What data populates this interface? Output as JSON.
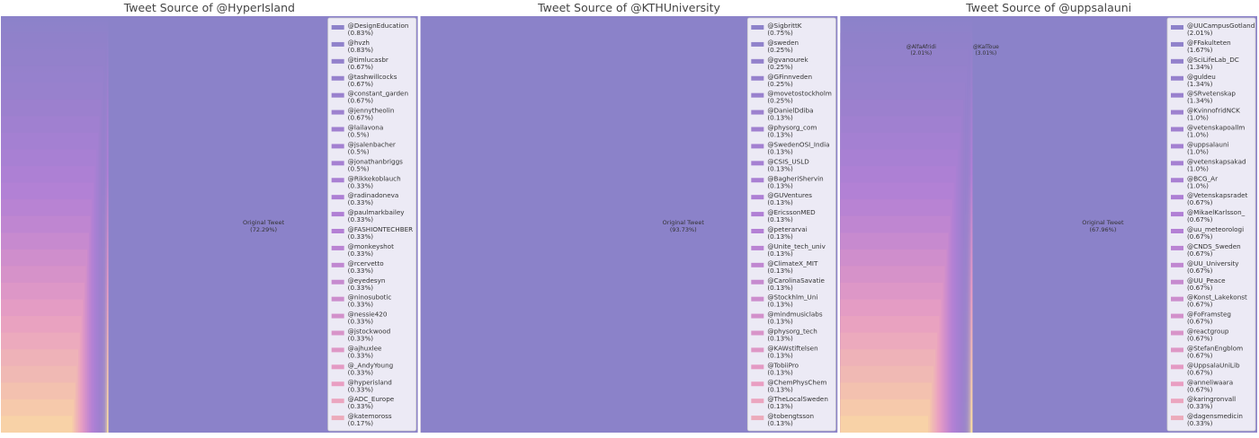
{
  "chart_data": [
    {
      "type": "treemap",
      "title": "Tweet Source of @HyperIsland",
      "main_label": "Original Tweet",
      "main_pct": "(72.29%)",
      "main_value": 72.29,
      "legend": [
        {
          "name": "@DesignEducation",
          "pct": "(0.83%)",
          "value": 0.83
        },
        {
          "name": "@hvzh",
          "pct": "(0.83%)",
          "value": 0.83
        },
        {
          "name": "@timlucasbr",
          "pct": "(0.67%)",
          "value": 0.67
        },
        {
          "name": "@tashwillcocks",
          "pct": "(0.67%)",
          "value": 0.67
        },
        {
          "name": "@constant_garden",
          "pct": "(0.67%)",
          "value": 0.67
        },
        {
          "name": "@jennytheolin",
          "pct": "(0.67%)",
          "value": 0.67
        },
        {
          "name": "@lailavona",
          "pct": "(0.5%)",
          "value": 0.5
        },
        {
          "name": "@jsalenbacher",
          "pct": "(0.5%)",
          "value": 0.5
        },
        {
          "name": "@jonathanbriggs",
          "pct": "(0.5%)",
          "value": 0.5
        },
        {
          "name": "@Rikkekoblauch",
          "pct": "(0.33%)",
          "value": 0.33
        },
        {
          "name": "@radinadoneva",
          "pct": "(0.33%)",
          "value": 0.33
        },
        {
          "name": "@paulmarkbailey",
          "pct": "(0.33%)",
          "value": 0.33
        },
        {
          "name": "@FASHIONTECHBER",
          "pct": "(0.33%)",
          "value": 0.33
        },
        {
          "name": "@monkeyshot",
          "pct": "(0.33%)",
          "value": 0.33
        },
        {
          "name": "@rcervetto",
          "pct": "(0.33%)",
          "value": 0.33
        },
        {
          "name": "@eyedesyn",
          "pct": "(0.33%)",
          "value": 0.33
        },
        {
          "name": "@ninosubotic",
          "pct": "(0.33%)",
          "value": 0.33
        },
        {
          "name": "@nessie420",
          "pct": "(0.33%)",
          "value": 0.33
        },
        {
          "name": "@jstockwood",
          "pct": "(0.33%)",
          "value": 0.33
        },
        {
          "name": "@ajhuxlee",
          "pct": "(0.33%)",
          "value": 0.33
        },
        {
          "name": "@_AndyYoung",
          "pct": "(0.33%)",
          "value": 0.33
        },
        {
          "name": "@hyperisland",
          "pct": "(0.33%)",
          "value": 0.33
        },
        {
          "name": "@ADC_Europe",
          "pct": "(0.33%)",
          "value": 0.33
        },
        {
          "name": "@katemoross",
          "pct": "(0.17%)",
          "value": 0.17
        }
      ],
      "extra_labels": []
    },
    {
      "type": "treemap",
      "title": "Tweet Source of @KTHUniversity",
      "main_label": "Original Tweet",
      "main_pct": "(93.73%)",
      "main_value": 93.73,
      "legend": [
        {
          "name": "@SigbrittK",
          "pct": "(0.75%)",
          "value": 0.75
        },
        {
          "name": "@sweden",
          "pct": "(0.25%)",
          "value": 0.25
        },
        {
          "name": "@gvanourek",
          "pct": "(0.25%)",
          "value": 0.25
        },
        {
          "name": "@GFinnveden",
          "pct": "(0.25%)",
          "value": 0.25
        },
        {
          "name": "@movetostockholm",
          "pct": "(0.25%)",
          "value": 0.25
        },
        {
          "name": "@DanielDdiba",
          "pct": "(0.13%)",
          "value": 0.13
        },
        {
          "name": "@physorg_com",
          "pct": "(0.13%)",
          "value": 0.13
        },
        {
          "name": "@SwedenOSI_India",
          "pct": "(0.13%)",
          "value": 0.13
        },
        {
          "name": "@CSIS_USLD",
          "pct": "(0.13%)",
          "value": 0.13
        },
        {
          "name": "@BagheriShervin",
          "pct": "(0.13%)",
          "value": 0.13
        },
        {
          "name": "@GUVentures",
          "pct": "(0.13%)",
          "value": 0.13
        },
        {
          "name": "@EricssonMED",
          "pct": "(0.13%)",
          "value": 0.13
        },
        {
          "name": "@peterarvai",
          "pct": "(0.13%)",
          "value": 0.13
        },
        {
          "name": "@Unite_tech_univ",
          "pct": "(0.13%)",
          "value": 0.13
        },
        {
          "name": "@ClimateX_MIT",
          "pct": "(0.13%)",
          "value": 0.13
        },
        {
          "name": "@CarolinaSavatie",
          "pct": "(0.13%)",
          "value": 0.13
        },
        {
          "name": "@Stockhlm_Uni",
          "pct": "(0.13%)",
          "value": 0.13
        },
        {
          "name": "@mindmusiclabs",
          "pct": "(0.13%)",
          "value": 0.13
        },
        {
          "name": "@physorg_tech",
          "pct": "(0.13%)",
          "value": 0.13
        },
        {
          "name": "@KAWstiftelsen",
          "pct": "(0.13%)",
          "value": 0.13
        },
        {
          "name": "@TobiiPro",
          "pct": "(0.13%)",
          "value": 0.13
        },
        {
          "name": "@ChemPhysChem",
          "pct": "(0.13%)",
          "value": 0.13
        },
        {
          "name": "@TheLocalSweden",
          "pct": "(0.13%)",
          "value": 0.13
        },
        {
          "name": "@tobengtsson",
          "pct": "(0.13%)",
          "value": 0.13
        }
      ],
      "extra_labels": []
    },
    {
      "type": "treemap",
      "title": "Tweet Source of @uppsalauni",
      "main_label": "Original Tweet",
      "main_pct": "(67.96%)",
      "main_value": 67.96,
      "legend": [
        {
          "name": "@UUCampusGotland",
          "pct": "(2.01%)",
          "value": 2.01
        },
        {
          "name": "@FFakulteten",
          "pct": "(1.67%)",
          "value": 1.67
        },
        {
          "name": "@SciLifeLab_DC",
          "pct": "(1.34%)",
          "value": 1.34
        },
        {
          "name": "@guldeu",
          "pct": "(1.34%)",
          "value": 1.34
        },
        {
          "name": "@SRvetenskap",
          "pct": "(1.34%)",
          "value": 1.34
        },
        {
          "name": "@KvinnofridNCK",
          "pct": "(1.0%)",
          "value": 1.0
        },
        {
          "name": "@vetenskapoallm",
          "pct": "(1.0%)",
          "value": 1.0
        },
        {
          "name": "@uppsalauni",
          "pct": "(1.0%)",
          "value": 1.0
        },
        {
          "name": "@vetenskapsakad",
          "pct": "(1.0%)",
          "value": 1.0
        },
        {
          "name": "@BCG_Ar",
          "pct": "(1.0%)",
          "value": 1.0
        },
        {
          "name": "@Vetenskapsradet",
          "pct": "(0.67%)",
          "value": 0.67
        },
        {
          "name": "@MikaelKarlsson_",
          "pct": "(0.67%)",
          "value": 0.67
        },
        {
          "name": "@uu_meteorologi",
          "pct": "(0.67%)",
          "value": 0.67
        },
        {
          "name": "@CNDS_Sweden",
          "pct": "(0.67%)",
          "value": 0.67
        },
        {
          "name": "@UU_University",
          "pct": "(0.67%)",
          "value": 0.67
        },
        {
          "name": "@UU_Peace",
          "pct": "(0.67%)",
          "value": 0.67
        },
        {
          "name": "@Konst_Lakekonst",
          "pct": "(0.67%)",
          "value": 0.67
        },
        {
          "name": "@FoFramsteg",
          "pct": "(0.67%)",
          "value": 0.67
        },
        {
          "name": "@reactgroup",
          "pct": "(0.67%)",
          "value": 0.67
        },
        {
          "name": "@StefanEngblom",
          "pct": "(0.67%)",
          "value": 0.67
        },
        {
          "name": "@UppsalaUniLib",
          "pct": "(0.67%)",
          "value": 0.67
        },
        {
          "name": "@anneliwaara",
          "pct": "(0.67%)",
          "value": 0.67
        },
        {
          "name": "@karingronvall",
          "pct": "(0.33%)",
          "value": 0.33
        },
        {
          "name": "@dagensmedicin",
          "pct": "(0.33%)",
          "value": 0.33
        }
      ],
      "extra_labels": [
        {
          "name": "@AlfaAfridi",
          "pct": "(2.01%)"
        },
        {
          "name": "@KalToue",
          "pct": "(3.01%)"
        }
      ]
    }
  ],
  "colors": {
    "main": "#8b82c9",
    "gradient_top": "#8b82c9",
    "gradient_mid1": "#b27fd6",
    "gradient_mid2": "#e89cc3",
    "gradient_bottom": "#fce0a0",
    "title": "#444444",
    "label": "#333333",
    "legend_bg": "#eceaf5",
    "legend_border": "#cccccc"
  }
}
